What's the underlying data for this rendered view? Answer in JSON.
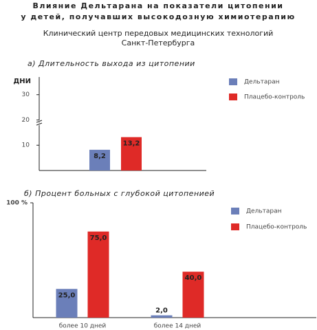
{
  "header": {
    "title_lines": [
      "Влияние  Дельтарана  на  показатели цитопении",
      "у  детей, получавших высокодозную  химиотерапию"
    ],
    "org_lines": [
      "Клинический центр передовых медицинских технологий",
      "Санкт-Петербурга"
    ]
  },
  "chart_data": [
    {
      "type": "bar",
      "title": "а) Длительность  выхода  из  цитопении",
      "ylabel": "ДНИ",
      "categories": [
        null
      ],
      "series": [
        {
          "name": "Дельтаран",
          "color": "#6b7fb9",
          "values": [
            8.2
          ],
          "value_labels": [
            "8,2"
          ]
        },
        {
          "name": "Плацебо-контроль",
          "color": "#df2a27",
          "values": [
            13.2
          ],
          "value_labels": [
            "13,2"
          ]
        }
      ],
      "ylim": [
        0,
        37
      ],
      "yticks": [
        10,
        20,
        30
      ],
      "legend": "upper right"
    },
    {
      "type": "bar",
      "title": "б) Процент  больных  с  глубокой  цитопенией",
      "categories": [
        "более 10 дней",
        "более 14 дней"
      ],
      "series": [
        {
          "name": "Дельтаран",
          "color": "#6b7fb9",
          "values": [
            25,
            2
          ],
          "value_labels": [
            "25,0",
            "2,0"
          ]
        },
        {
          "name": "Плацебо-контроль",
          "color": "#df2a27",
          "values": [
            75,
            40
          ],
          "value_labels": [
            "75,0",
            "40,0"
          ]
        }
      ],
      "ylim": [
        0,
        100
      ],
      "yticks": [
        {
          "value": 100,
          "label": "100 %"
        }
      ],
      "legend": "upper right"
    }
  ]
}
